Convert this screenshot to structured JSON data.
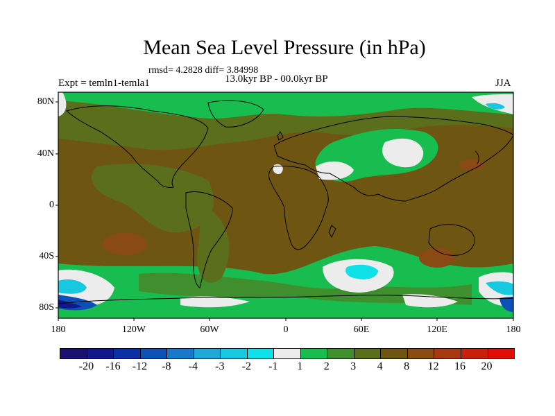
{
  "title": "Mean Sea Level Pressure (in hPa)",
  "stats": "rmsd= 4.2828 diff= 3.84998",
  "experiment": "Expt = temln1-temla1",
  "period": "13.0kyr BP - 00.0kyr BP",
  "season": "JJA",
  "lat_labels": [
    "80N",
    "40N",
    "0",
    "40S",
    "80S"
  ],
  "lon_labels": [
    "180",
    "120W",
    "60W",
    "0",
    "60E",
    "120E",
    "180"
  ],
  "colorbar": {
    "labels": [
      "-20",
      "-16",
      "-12",
      "-8",
      "-4",
      "-3",
      "-2",
      "-1",
      "1",
      "2",
      "3",
      "4",
      "8",
      "12",
      "16",
      "20"
    ],
    "colors": [
      "#1a1070",
      "#12188c",
      "#0a2fa6",
      "#0d50b8",
      "#1a78cc",
      "#20a8d8",
      "#18c8e0",
      "#10e0e8",
      "#ececec",
      "#18bd50",
      "#3f8f2e",
      "#5a6e1c",
      "#6e5512",
      "#8a4a14",
      "#a8380f",
      "#c8200c",
      "#e00c08"
    ]
  }
}
